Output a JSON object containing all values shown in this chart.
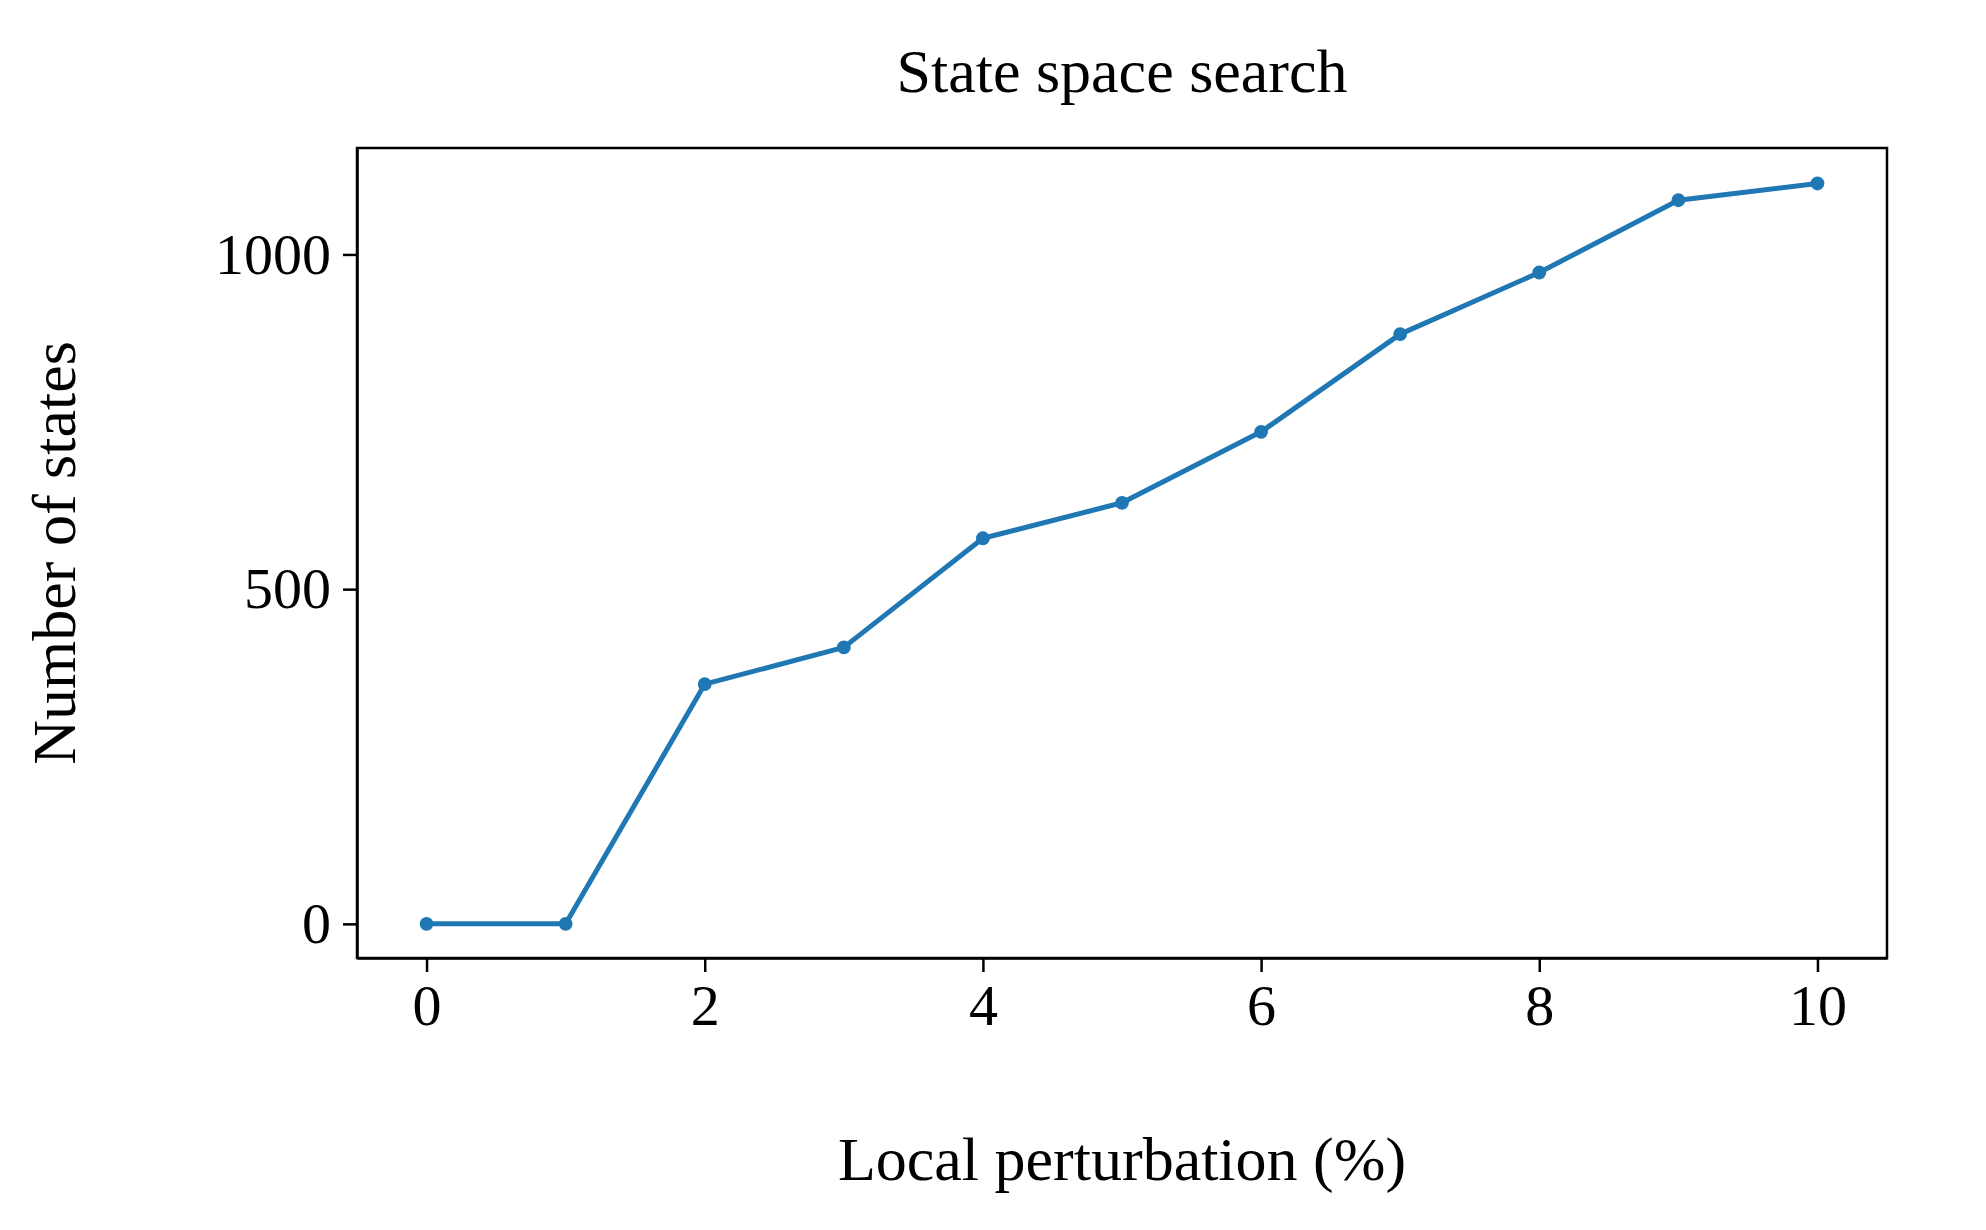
{
  "chart_data": {
    "type": "line",
    "title": "State space search",
    "xlabel": "Local perturbation (%)",
    "ylabel": "Number of states",
    "x": [
      0,
      1,
      2,
      3,
      4,
      5,
      6,
      7,
      8,
      9,
      10
    ],
    "series": [
      {
        "color": "#1f77b4",
        "values": [
          0,
          0,
          358,
          413,
          576,
          629,
          735,
          881,
          973,
          1081,
          1106
        ]
      }
    ],
    "xlim": [
      -0.5,
      10.5
    ],
    "xticks": [
      0,
      2,
      4,
      6,
      8,
      10
    ],
    "ylim": [
      -51,
      1159
    ],
    "yticks": [
      0,
      500,
      1000
    ],
    "grid": false,
    "marker": "circle",
    "line_style": "solid"
  }
}
